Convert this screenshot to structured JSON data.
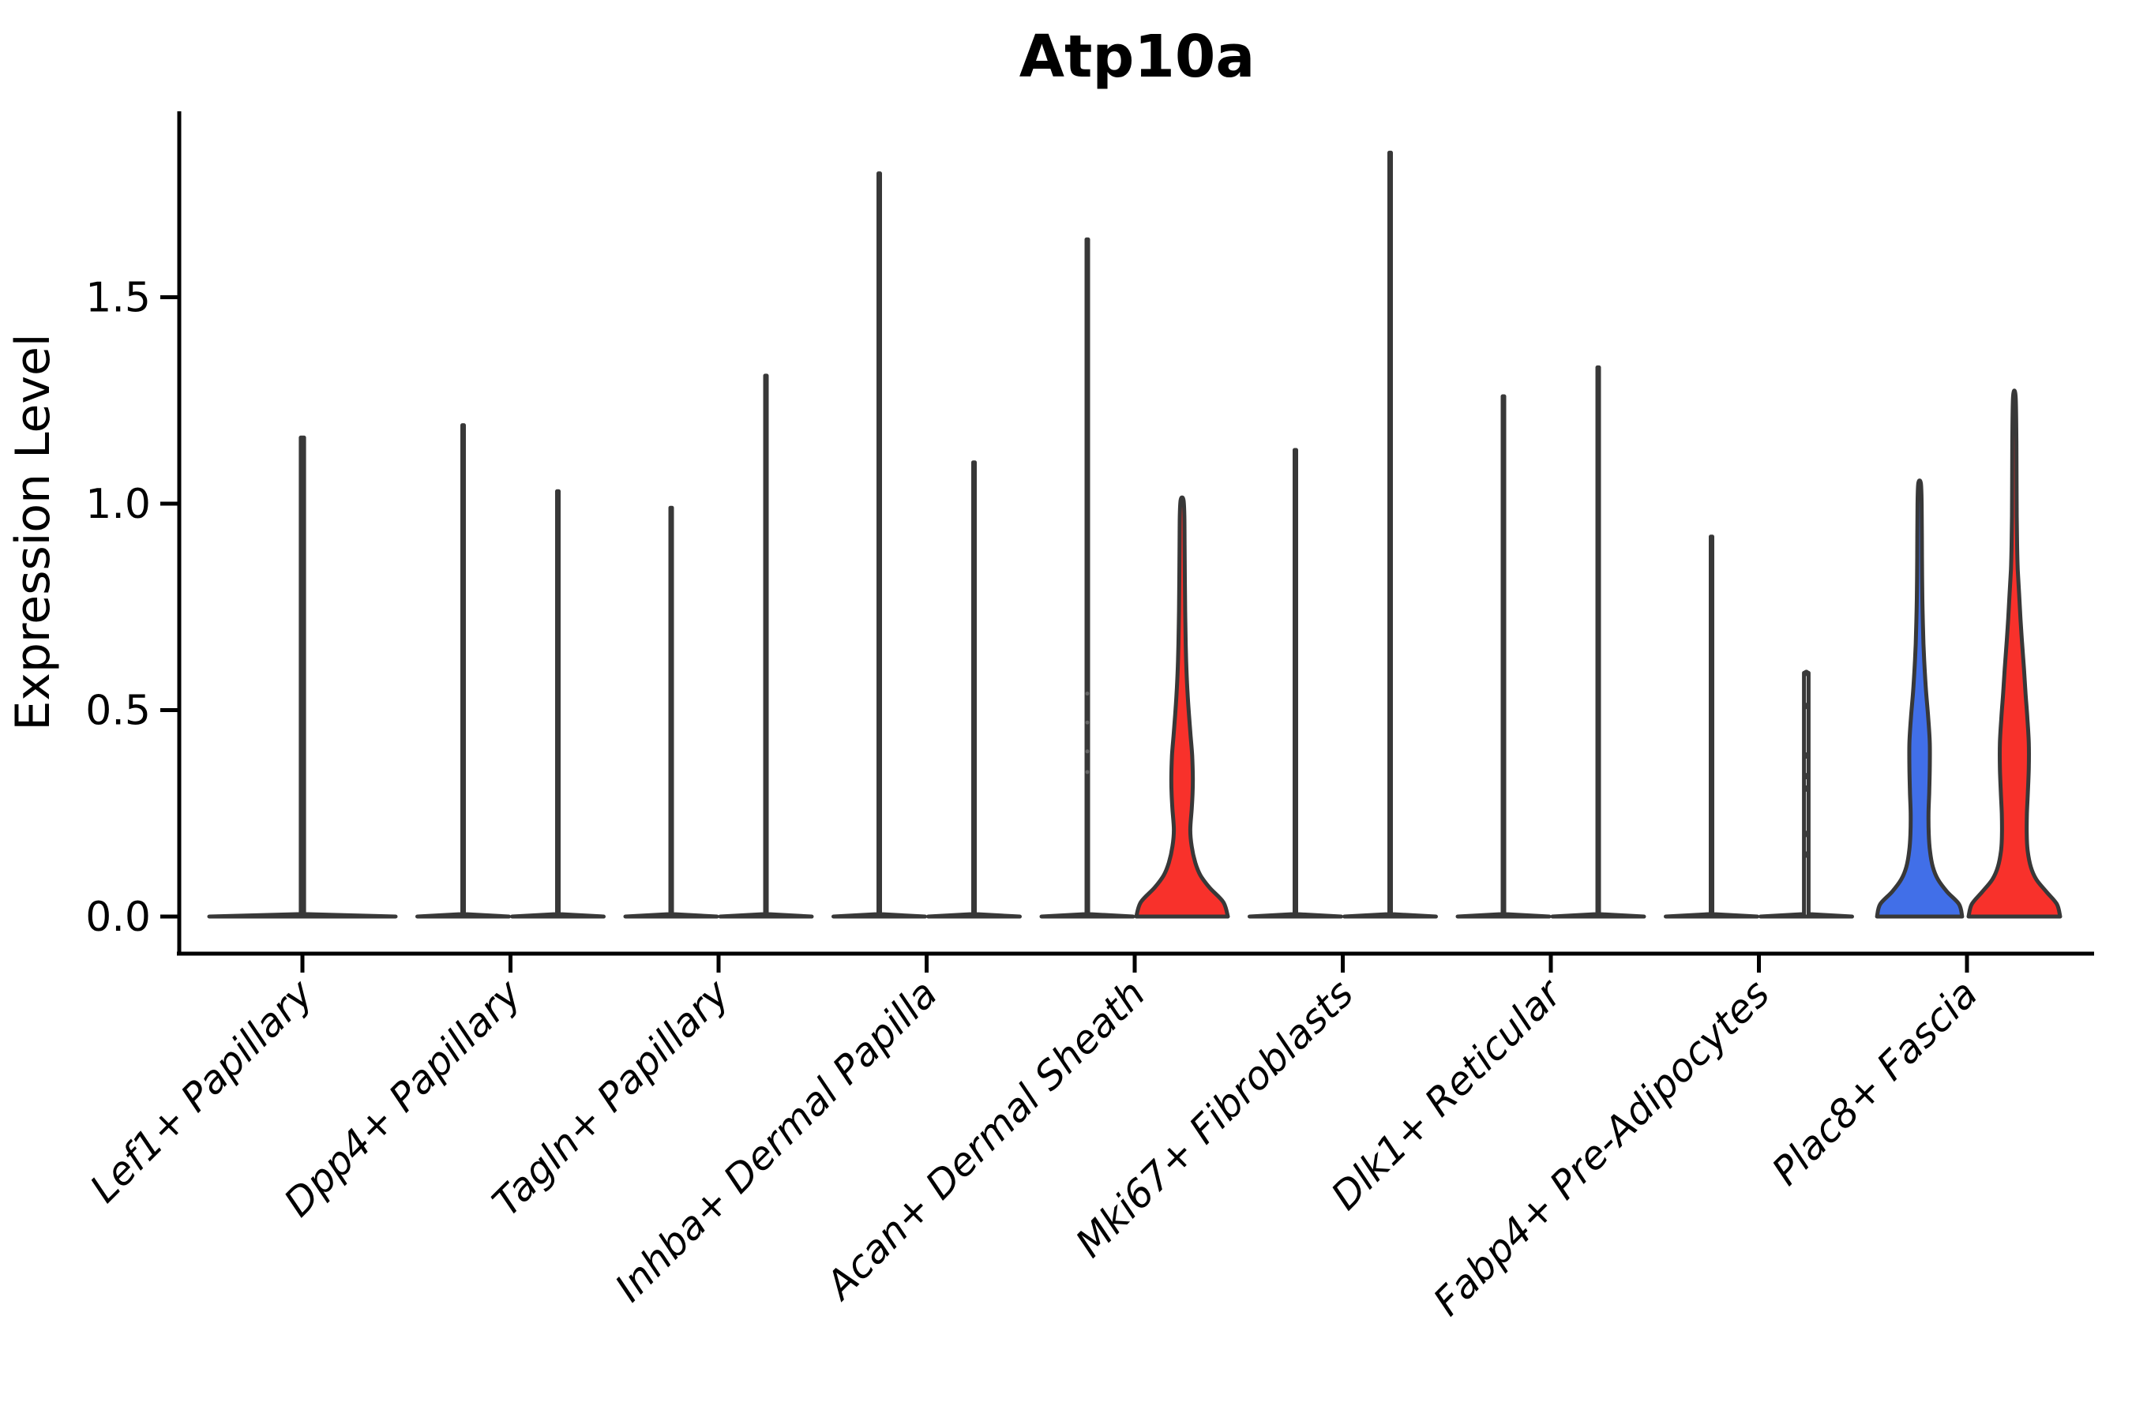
{
  "chart_data": {
    "type": "violin",
    "title": "Atp10a",
    "ylabel": "Expression Level",
    "xlabel": "",
    "yticks": [
      "0.0",
      "0.5",
      "1.0",
      "1.5"
    ],
    "ytick_values": [
      0.0,
      0.5,
      1.0,
      1.5
    ],
    "ylim": [
      -0.09,
      1.95
    ],
    "grid": false,
    "legend": "none",
    "x_rotation_deg": 45,
    "colors": {
      "blue_fill": "#416FE8",
      "red_fill": "#F8312B",
      "violin_outline": "#383838",
      "axis": "#000000",
      "dot": "#3a3a3a"
    },
    "categories": [
      "Lef1+ Papillary",
      "Dpp4+ Papillary",
      "Tagln+ Papillary",
      "Inhba+ Dermal Papilla",
      "Acan+ Dermal Sheath",
      "Mki67+ Fibroblasts",
      "Dlk1+ Reticular",
      "Fabp4+ Pre-Adipocytes",
      "Plac8+ Fascia"
    ],
    "violins": [
      {
        "category": 0,
        "side": "center",
        "kind": "spike",
        "max": 1.16,
        "fill": "#ffffff",
        "dots": []
      },
      {
        "category": 1,
        "side": "left",
        "kind": "spike",
        "max": 1.19,
        "fill": "#ffffff",
        "dots": []
      },
      {
        "category": 1,
        "side": "right",
        "kind": "spike",
        "max": 1.03,
        "fill": "#ffffff",
        "dots": []
      },
      {
        "category": 2,
        "side": "left",
        "kind": "spike",
        "max": 0.99,
        "fill": "#ffffff",
        "dots": []
      },
      {
        "category": 2,
        "side": "right",
        "kind": "spike",
        "max": 1.31,
        "fill": "#ffffff",
        "dots": []
      },
      {
        "category": 3,
        "side": "left",
        "kind": "spike",
        "max": 1.8,
        "fill": "#ffffff",
        "dots": []
      },
      {
        "category": 3,
        "side": "right",
        "kind": "spike",
        "max": 1.1,
        "fill": "#ffffff",
        "dots": []
      },
      {
        "category": 4,
        "side": "left",
        "kind": "spike",
        "max": 1.64,
        "fill": "#ffffff",
        "dot_size": 2.5,
        "dots": [
          0.54,
          0.47,
          0.4,
          0.35
        ]
      },
      {
        "category": 4,
        "side": "right",
        "kind": "body",
        "max": 1.01,
        "fill": "#F8312B",
        "dots": [],
        "profile": [
          [
            0,
            1.0
          ],
          [
            0.035,
            0.9
          ],
          [
            0.07,
            0.6
          ],
          [
            0.1,
            0.4
          ],
          [
            0.13,
            0.29
          ],
          [
            0.17,
            0.21
          ],
          [
            0.21,
            0.18
          ],
          [
            0.26,
            0.21
          ],
          [
            0.3,
            0.23
          ],
          [
            0.34,
            0.235
          ],
          [
            0.39,
            0.22
          ],
          [
            0.44,
            0.185
          ],
          [
            0.49,
            0.15
          ],
          [
            0.54,
            0.12
          ],
          [
            0.6,
            0.095
          ],
          [
            0.66,
            0.08
          ],
          [
            0.74,
            0.068
          ],
          [
            0.82,
            0.06
          ],
          [
            0.9,
            0.055
          ],
          [
            0.97,
            0.05
          ],
          [
            1.01,
            0.03
          ]
        ]
      },
      {
        "category": 5,
        "side": "left",
        "kind": "spike",
        "max": 1.13,
        "fill": "#ffffff",
        "dots": []
      },
      {
        "category": 5,
        "side": "right",
        "kind": "spike",
        "max": 1.85,
        "fill": "#ffffff",
        "dots": []
      },
      {
        "category": 6,
        "side": "left",
        "kind": "spike",
        "max": 1.26,
        "fill": "#ffffff",
        "dots": []
      },
      {
        "category": 6,
        "side": "right",
        "kind": "spike",
        "max": 1.33,
        "fill": "#ffffff",
        "dots": []
      },
      {
        "category": 7,
        "side": "left",
        "kind": "spike",
        "max": 0.92,
        "fill": "#ffffff",
        "dots": []
      },
      {
        "category": 7,
        "side": "right",
        "kind": "spike",
        "max": 0.59,
        "fill": "#ffffff",
        "thick": true,
        "dot_size": 4,
        "dots": [
          0.59,
          0.51,
          0.39,
          0.34,
          0.31,
          0.2,
          0.15
        ]
      },
      {
        "category": 8,
        "side": "left",
        "kind": "body",
        "max": 1.05,
        "fill": "#416FE8",
        "dots": [],
        "profile": [
          [
            0,
            0.93
          ],
          [
            0.03,
            0.86
          ],
          [
            0.06,
            0.6
          ],
          [
            0.09,
            0.4
          ],
          [
            0.12,
            0.29
          ],
          [
            0.16,
            0.225
          ],
          [
            0.2,
            0.2
          ],
          [
            0.25,
            0.195
          ],
          [
            0.3,
            0.21
          ],
          [
            0.36,
            0.222
          ],
          [
            0.42,
            0.222
          ],
          [
            0.48,
            0.19
          ],
          [
            0.54,
            0.145
          ],
          [
            0.6,
            0.11
          ],
          [
            0.66,
            0.085
          ],
          [
            0.74,
            0.065
          ],
          [
            0.82,
            0.055
          ],
          [
            0.92,
            0.05
          ],
          [
            1.0,
            0.045
          ],
          [
            1.05,
            0.028
          ]
        ]
      },
      {
        "category": 8,
        "side": "right",
        "kind": "body",
        "max": 1.26,
        "fill": "#F8312B",
        "dots": [],
        "profile": [
          [
            0,
            1.0
          ],
          [
            0.03,
            0.93
          ],
          [
            0.06,
            0.7
          ],
          [
            0.09,
            0.48
          ],
          [
            0.12,
            0.36
          ],
          [
            0.16,
            0.29
          ],
          [
            0.2,
            0.27
          ],
          [
            0.25,
            0.275
          ],
          [
            0.3,
            0.295
          ],
          [
            0.36,
            0.315
          ],
          [
            0.42,
            0.315
          ],
          [
            0.48,
            0.285
          ],
          [
            0.54,
            0.245
          ],
          [
            0.6,
            0.21
          ],
          [
            0.66,
            0.17
          ],
          [
            0.72,
            0.135
          ],
          [
            0.78,
            0.105
          ],
          [
            0.84,
            0.075
          ],
          [
            0.9,
            0.06
          ],
          [
            0.97,
            0.052
          ],
          [
            1.05,
            0.048
          ],
          [
            1.15,
            0.044
          ],
          [
            1.26,
            0.028
          ]
        ]
      }
    ]
  }
}
